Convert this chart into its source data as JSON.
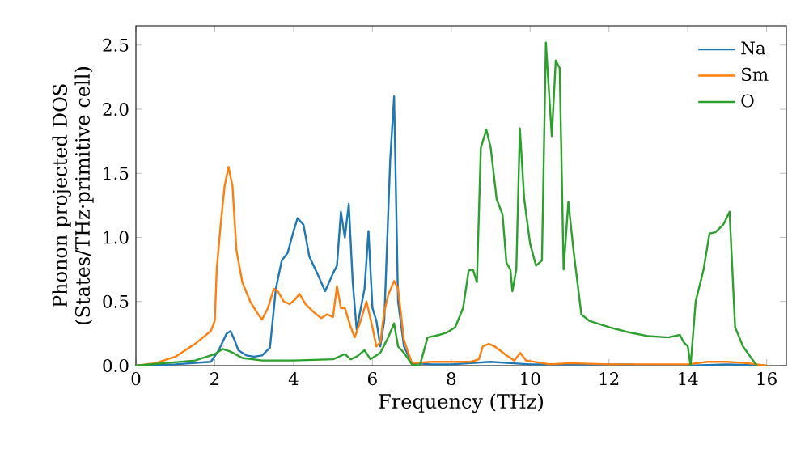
{
  "chart_data": {
    "type": "line",
    "xlabel": "Frequency (THz)",
    "ylabel": "Phonon projected DOS (States/THz·primitive cell)",
    "xlim": [
      0,
      16.5
    ],
    "ylim": [
      0,
      2.65
    ],
    "xticks": [
      0,
      2,
      4,
      6,
      8,
      10,
      12,
      14,
      16
    ],
    "yticks": [
      {
        "value": 0,
        "label": "0.0"
      },
      0.5,
      {
        "value": 1,
        "label": "1.0"
      },
      1.5,
      {
        "value": 2,
        "label": "2.0"
      },
      2.5
    ],
    "legend": "top right",
    "grid": false,
    "series": [
      {
        "name": "Na",
        "color": "#1f77b4",
        "x": [
          0,
          1.0,
          1.9,
          2.1,
          2.3,
          2.4,
          2.5,
          2.6,
          2.8,
          3.0,
          3.2,
          3.4,
          3.55,
          3.7,
          3.85,
          4.0,
          4.1,
          4.25,
          4.4,
          4.6,
          4.8,
          5.0,
          5.1,
          5.2,
          5.3,
          5.4,
          5.5,
          5.6,
          5.8,
          5.9,
          6.0,
          6.1,
          6.2,
          6.3,
          6.45,
          6.55,
          6.65,
          6.8,
          7.0,
          7.5,
          8.0,
          9.0,
          9.5,
          10,
          11,
          12,
          14,
          15,
          16
        ],
        "values": [
          0,
          0.01,
          0.03,
          0.12,
          0.25,
          0.27,
          0.2,
          0.12,
          0.08,
          0.07,
          0.08,
          0.14,
          0.6,
          0.82,
          0.88,
          1.05,
          1.15,
          1.1,
          0.85,
          0.72,
          0.58,
          0.72,
          0.78,
          1.2,
          1.0,
          1.26,
          0.65,
          0.28,
          0.6,
          1.05,
          0.45,
          0.35,
          0.15,
          0.35,
          1.6,
          2.1,
          0.5,
          0.15,
          0.02,
          0.01,
          0.01,
          0.03,
          0.02,
          0.01,
          0.01,
          0.01,
          0,
          0.01,
          0
        ]
      },
      {
        "name": "Sm",
        "color": "#ff7f0e",
        "x": [
          0,
          0.5,
          1.0,
          1.5,
          1.9,
          2.0,
          2.05,
          2.15,
          2.25,
          2.35,
          2.45,
          2.55,
          2.7,
          2.9,
          3.1,
          3.2,
          3.35,
          3.5,
          3.6,
          3.75,
          3.9,
          4.05,
          4.15,
          4.3,
          4.5,
          4.7,
          4.85,
          5.0,
          5.1,
          5.2,
          5.3,
          5.45,
          5.55,
          5.7,
          5.85,
          6.0,
          6.1,
          6.2,
          6.3,
          6.4,
          6.55,
          6.65,
          6.8,
          7.0,
          7.5,
          8.5,
          8.7,
          8.8,
          8.95,
          9.1,
          9.4,
          9.6,
          9.75,
          9.9,
          10.5,
          11,
          12,
          14,
          14.5,
          15.0,
          15.5,
          16
        ],
        "values": [
          0,
          0.02,
          0.07,
          0.17,
          0.27,
          0.35,
          0.75,
          1.1,
          1.4,
          1.55,
          1.4,
          0.9,
          0.65,
          0.5,
          0.4,
          0.36,
          0.45,
          0.6,
          0.58,
          0.5,
          0.48,
          0.52,
          0.56,
          0.48,
          0.42,
          0.37,
          0.4,
          0.38,
          0.62,
          0.45,
          0.45,
          0.3,
          0.22,
          0.35,
          0.5,
          0.3,
          0.15,
          0.18,
          0.42,
          0.55,
          0.66,
          0.6,
          0.2,
          0.02,
          0.03,
          0.03,
          0.05,
          0.15,
          0.17,
          0.15,
          0.08,
          0.04,
          0.1,
          0.04,
          0.01,
          0.02,
          0.01,
          0.01,
          0.03,
          0.03,
          0.02,
          0
        ]
      },
      {
        "name": "O",
        "color": "#2ca02c",
        "x": [
          0,
          1.5,
          2.0,
          2.2,
          2.4,
          2.7,
          3.2,
          4.0,
          5.0,
          5.3,
          5.45,
          5.6,
          5.8,
          5.95,
          6.2,
          6.4,
          6.55,
          6.65,
          6.8,
          7.0,
          7.2,
          7.4,
          7.7,
          7.9,
          8.1,
          8.3,
          8.44,
          8.55,
          8.65,
          8.75,
          8.89,
          9.0,
          9.15,
          9.3,
          9.4,
          9.5,
          9.55,
          9.65,
          9.74,
          9.85,
          10.0,
          10.15,
          10.3,
          10.4,
          10.55,
          10.65,
          10.75,
          10.85,
          10.97,
          11.1,
          11.3,
          11.5,
          12,
          12.5,
          13,
          13.5,
          13.8,
          13.9,
          14.0,
          14.07,
          14.2,
          14.4,
          14.55,
          14.7,
          14.9,
          15.06,
          15.2,
          15.4,
          15.75
        ],
        "values": [
          0,
          0.04,
          0.09,
          0.13,
          0.11,
          0.06,
          0.04,
          0.04,
          0.05,
          0.09,
          0.05,
          0.07,
          0.12,
          0.05,
          0.1,
          0.22,
          0.33,
          0.15,
          0.1,
          0.01,
          0.0,
          0.22,
          0.24,
          0.26,
          0.3,
          0.45,
          0.74,
          0.75,
          0.65,
          1.7,
          1.84,
          1.7,
          1.3,
          1.18,
          0.8,
          0.75,
          0.58,
          0.75,
          1.85,
          1.3,
          0.95,
          0.78,
          0.82,
          2.52,
          1.79,
          2.38,
          2.32,
          0.75,
          1.28,
          0.9,
          0.4,
          0.35,
          0.3,
          0.26,
          0.23,
          0.22,
          0.24,
          0.18,
          0.15,
          0.0,
          0.5,
          0.75,
          1.03,
          1.04,
          1.1,
          1.2,
          0.3,
          0.15,
          0.0
        ]
      }
    ]
  }
}
